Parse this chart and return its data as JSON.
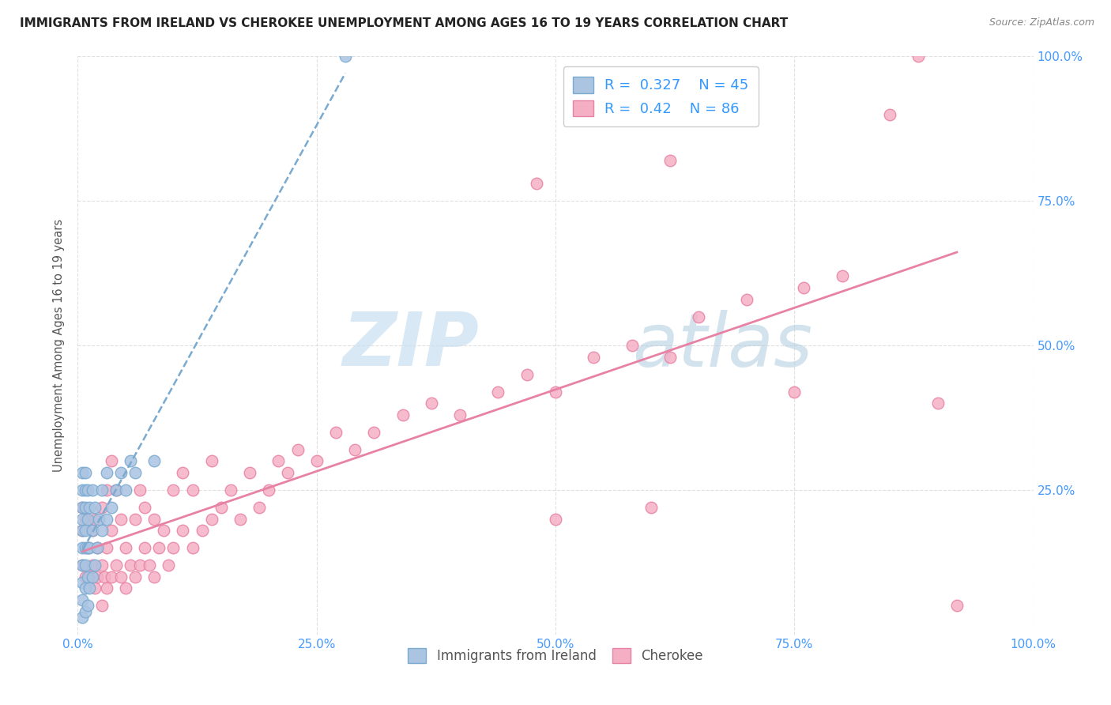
{
  "title": "IMMIGRANTS FROM IRELAND VS CHEROKEE UNEMPLOYMENT AMONG AGES 16 TO 19 YEARS CORRELATION CHART",
  "source": "Source: ZipAtlas.com",
  "ylabel": "Unemployment Among Ages 16 to 19 years",
  "xlim": [
    0,
    1.0
  ],
  "ylim": [
    0,
    1.0
  ],
  "xticks": [
    0.0,
    0.25,
    0.5,
    0.75,
    1.0
  ],
  "xticklabels": [
    "0.0%",
    "25.0%",
    "50.0%",
    "75.0%",
    "100.0%"
  ],
  "yticks": [
    0.0,
    0.25,
    0.5,
    0.75,
    1.0
  ],
  "yticklabels": [
    "",
    "25.0%",
    "50.0%",
    "75.0%",
    "100.0%"
  ],
  "ireland_color": "#aac4e2",
  "cherokee_color": "#f5afc5",
  "ireland_edge": "#7aaad0",
  "cherokee_edge": "#e882a4",
  "ireland_R": 0.327,
  "ireland_N": 45,
  "cherokee_R": 0.42,
  "cherokee_N": 86,
  "background_color": "#ffffff",
  "grid_color": "#dddddd",
  "watermark_zip": "ZIP",
  "watermark_atlas": "atlas",
  "watermark_color_zip": "#cce0f0",
  "watermark_color_atlas": "#b8d4e8",
  "ireland_line_color": "#7aaad0",
  "cherokee_line_color": "#e882a4",
  "ireland_scatter_x": [
    0.005,
    0.005,
    0.005,
    0.005,
    0.005,
    0.005,
    0.005,
    0.005,
    0.005,
    0.005,
    0.008,
    0.008,
    0.008,
    0.008,
    0.008,
    0.008,
    0.008,
    0.008,
    0.01,
    0.01,
    0.01,
    0.01,
    0.01,
    0.012,
    0.012,
    0.012,
    0.015,
    0.015,
    0.015,
    0.018,
    0.018,
    0.02,
    0.022,
    0.025,
    0.025,
    0.03,
    0.03,
    0.035,
    0.04,
    0.045,
    0.05,
    0.055,
    0.06,
    0.08,
    0.28
  ],
  "ireland_scatter_y": [
    0.03,
    0.06,
    0.09,
    0.12,
    0.15,
    0.18,
    0.2,
    0.22,
    0.25,
    0.28,
    0.04,
    0.08,
    0.12,
    0.15,
    0.18,
    0.22,
    0.25,
    0.28,
    0.05,
    0.1,
    0.15,
    0.2,
    0.25,
    0.08,
    0.15,
    0.22,
    0.1,
    0.18,
    0.25,
    0.12,
    0.22,
    0.15,
    0.2,
    0.18,
    0.25,
    0.2,
    0.28,
    0.22,
    0.25,
    0.28,
    0.25,
    0.3,
    0.28,
    0.3,
    1.0
  ],
  "cherokee_scatter_x": [
    0.005,
    0.005,
    0.005,
    0.008,
    0.008,
    0.01,
    0.012,
    0.015,
    0.015,
    0.018,
    0.018,
    0.02,
    0.02,
    0.025,
    0.025,
    0.025,
    0.028,
    0.03,
    0.03,
    0.03,
    0.035,
    0.035,
    0.035,
    0.04,
    0.04,
    0.045,
    0.045,
    0.05,
    0.05,
    0.055,
    0.06,
    0.06,
    0.065,
    0.065,
    0.07,
    0.07,
    0.075,
    0.08,
    0.08,
    0.085,
    0.09,
    0.095,
    0.1,
    0.1,
    0.11,
    0.11,
    0.12,
    0.12,
    0.13,
    0.14,
    0.14,
    0.15,
    0.16,
    0.17,
    0.18,
    0.19,
    0.2,
    0.21,
    0.22,
    0.23,
    0.25,
    0.27,
    0.29,
    0.31,
    0.34,
    0.37,
    0.4,
    0.44,
    0.47,
    0.5,
    0.54,
    0.58,
    0.62,
    0.65,
    0.7,
    0.76,
    0.8,
    0.88,
    0.5,
    0.6,
    0.75,
    0.9,
    0.48,
    0.62,
    0.85,
    0.92
  ],
  "cherokee_scatter_y": [
    0.12,
    0.18,
    0.22,
    0.1,
    0.2,
    0.15,
    0.1,
    0.12,
    0.18,
    0.08,
    0.2,
    0.1,
    0.15,
    0.05,
    0.12,
    0.22,
    0.1,
    0.08,
    0.15,
    0.25,
    0.1,
    0.18,
    0.3,
    0.12,
    0.25,
    0.1,
    0.2,
    0.08,
    0.15,
    0.12,
    0.1,
    0.2,
    0.12,
    0.25,
    0.15,
    0.22,
    0.12,
    0.1,
    0.2,
    0.15,
    0.18,
    0.12,
    0.15,
    0.25,
    0.18,
    0.28,
    0.15,
    0.25,
    0.18,
    0.2,
    0.3,
    0.22,
    0.25,
    0.2,
    0.28,
    0.22,
    0.25,
    0.3,
    0.28,
    0.32,
    0.3,
    0.35,
    0.32,
    0.35,
    0.38,
    0.4,
    0.38,
    0.42,
    0.45,
    0.42,
    0.48,
    0.5,
    0.48,
    0.55,
    0.58,
    0.6,
    0.62,
    1.0,
    0.2,
    0.22,
    0.42,
    0.4,
    0.78,
    0.82,
    0.9,
    0.05
  ]
}
